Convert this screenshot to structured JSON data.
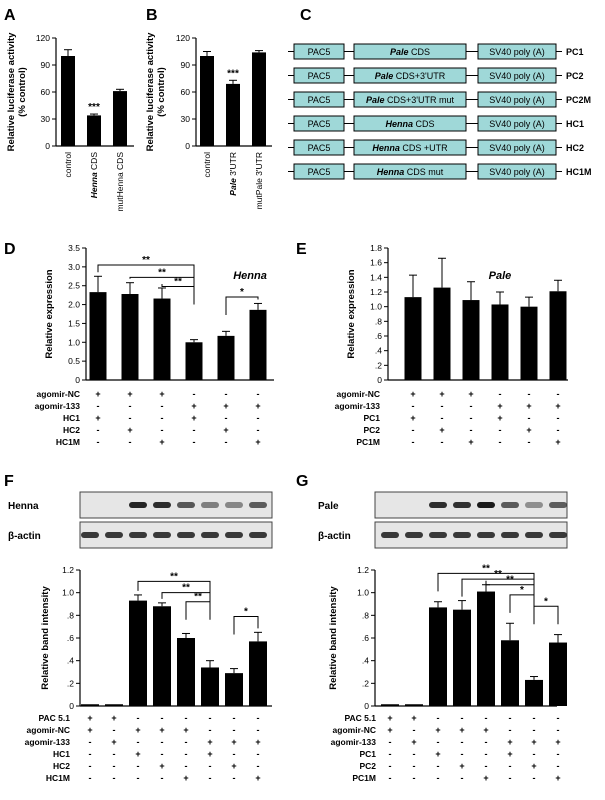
{
  "chart_data": [
    {
      "panel": "A",
      "type": "bar",
      "categories": [
        "control",
        "Henna CDS",
        "mutHenna CDS"
      ],
      "values": [
        100,
        34,
        61
      ],
      "errors": [
        7,
        1.5,
        2
      ],
      "ylabel": "Relative luciferase activity",
      "ylabel2": "(% control)",
      "ylim": [
        0,
        120
      ],
      "yticks": [
        "0",
        "30",
        "60",
        "90",
        "120"
      ],
      "sig": [
        {
          "bar": 1,
          "label": "***"
        }
      ],
      "bar_color": "#000000"
    },
    {
      "panel": "B",
      "type": "bar",
      "categories": [
        "control",
        "Pale 3'UTR",
        "mutPale 3'UTR"
      ],
      "values": [
        100,
        69,
        104
      ],
      "errors": [
        5,
        4,
        2
      ],
      "ylabel": "Relative luciferase activity",
      "ylabel2": "(% control)",
      "ylim": [
        0,
        120
      ],
      "yticks": [
        "0",
        "30",
        "60",
        "90",
        "120"
      ],
      "sig": [
        {
          "bar": 1,
          "label": "***"
        }
      ],
      "bar_color": "#000000"
    },
    {
      "panel": "D",
      "type": "bar",
      "title": "Henna",
      "values": [
        2.33,
        2.28,
        2.16,
        1.0,
        1.17,
        1.86
      ],
      "errors": [
        0.42,
        0.3,
        0.28,
        0.07,
        0.12,
        0.17
      ],
      "ylabel": "Relative expression",
      "ylim": [
        0,
        3.5
      ],
      "yticks": [
        "0",
        "0.5",
        "1.0",
        "1.5",
        "2.0",
        "2.5",
        "3.0",
        "3.5"
      ],
      "condition_rows": [
        {
          "label": "agomir-NC",
          "signs": [
            "+",
            "+",
            "+",
            "-",
            "-",
            "-"
          ]
        },
        {
          "label": "agomir-133",
          "signs": [
            "-",
            "-",
            "-",
            "+",
            "+",
            "+"
          ]
        },
        {
          "label": "HC1",
          "signs": [
            "+",
            "-",
            "-",
            "+",
            "-",
            "-"
          ]
        },
        {
          "label": "HC2",
          "signs": [
            "-",
            "+",
            "-",
            "-",
            "+",
            "-"
          ]
        },
        {
          "label": "HC1M",
          "signs": [
            "-",
            "-",
            "+",
            "-",
            "-",
            "+"
          ]
        }
      ],
      "brackets": [
        {
          "from": 0,
          "to": 3,
          "label": "**",
          "level": 3.05
        },
        {
          "from": 1,
          "to": 3,
          "label": "**",
          "level": 2.72
        },
        {
          "from": 2,
          "to": 3,
          "label": "**",
          "level": 2.48
        },
        {
          "from": 4,
          "to": 5,
          "label": "*",
          "level": 2.2
        }
      ]
    },
    {
      "panel": "E",
      "type": "bar",
      "title": "Pale",
      "values": [
        1.13,
        1.26,
        1.09,
        1.03,
        1.0,
        1.21
      ],
      "errors": [
        0.3,
        0.4,
        0.25,
        0.17,
        0.13,
        0.15
      ],
      "ylabel": "Relative expression",
      "ylim": [
        0,
        1.8
      ],
      "yticks": [
        "0",
        ".2",
        ".4",
        ".6",
        ".8",
        "1.0",
        "1.2",
        "1.4",
        "1.6",
        "1.8"
      ],
      "condition_rows": [
        {
          "label": "agomir-NC",
          "signs": [
            "+",
            "+",
            "+",
            "-",
            "-",
            "-"
          ]
        },
        {
          "label": "agomir-133",
          "signs": [
            "-",
            "-",
            "-",
            "+",
            "+",
            "+"
          ]
        },
        {
          "label": "PC1",
          "signs": [
            "+",
            "-",
            "-",
            "+",
            "-",
            "-"
          ]
        },
        {
          "label": "PC2",
          "signs": [
            "-",
            "+",
            "-",
            "-",
            "+",
            "-"
          ]
        },
        {
          "label": "PC1M",
          "signs": [
            "-",
            "-",
            "+",
            "-",
            "-",
            "+"
          ]
        }
      ],
      "brackets": []
    },
    {
      "panel": "F",
      "type": "bar",
      "values": [
        0,
        0,
        0.93,
        0.88,
        0.6,
        0.34,
        0.29,
        0.57
      ],
      "errors": [
        0,
        0,
        0.05,
        0.03,
        0.04,
        0.06,
        0.04,
        0.08
      ],
      "ylabel": "Relative band intensity",
      "ylim": [
        0,
        1.2
      ],
      "yticks": [
        "0",
        ".2",
        ".4",
        ".6",
        ".8",
        "1.0",
        "1.2"
      ],
      "condition_rows": [
        {
          "label": "PAC 5.1",
          "signs": [
            "+",
            "+",
            "-",
            "-",
            "-",
            "-",
            "-",
            "-"
          ]
        },
        {
          "label": "agomir-NC",
          "signs": [
            "+",
            "-",
            "+",
            "+",
            "+",
            "-",
            "-",
            "-"
          ]
        },
        {
          "label": "agomir-133",
          "signs": [
            "-",
            "+",
            "-",
            "-",
            "-",
            "+",
            "+",
            "+"
          ]
        },
        {
          "label": "HC1",
          "signs": [
            "-",
            "-",
            "+",
            "-",
            "-",
            "+",
            "-",
            "-"
          ]
        },
        {
          "label": "HC2",
          "signs": [
            "-",
            "-",
            "-",
            "+",
            "-",
            "-",
            "+",
            "-"
          ]
        },
        {
          "label": "HC1M",
          "signs": [
            "-",
            "-",
            "-",
            "-",
            "+",
            "-",
            "-",
            "+"
          ]
        }
      ],
      "brackets": [
        {
          "from": 2,
          "to": 5,
          "label": "**",
          "level": 1.1
        },
        {
          "from": 3,
          "to": 5,
          "label": "**",
          "level": 1.0
        },
        {
          "from": 4,
          "to": 5,
          "label": "**",
          "level": 0.92
        },
        {
          "from": 6,
          "to": 7,
          "label": "*",
          "level": 0.79
        }
      ]
    },
    {
      "panel": "G",
      "type": "bar",
      "values": [
        0,
        0,
        0.87,
        0.85,
        1.01,
        0.58,
        0.23,
        0.56
      ],
      "errors": [
        0,
        0,
        0.05,
        0.08,
        0.06,
        0.15,
        0.03,
        0.07
      ],
      "ylabel": "Relative band intensity",
      "ylim": [
        0,
        1.2
      ],
      "yticks": [
        "0",
        ".2",
        ".4",
        ".6",
        ".8",
        "1.0",
        "1.2"
      ],
      "condition_rows": [
        {
          "label": "PAC 5.1",
          "signs": [
            "+",
            "+",
            "-",
            "-",
            "-",
            "-",
            "-",
            "-"
          ]
        },
        {
          "label": "agomir-NC",
          "signs": [
            "+",
            "-",
            "+",
            "+",
            "+",
            "-",
            "-",
            "-"
          ]
        },
        {
          "label": "agomir-133",
          "signs": [
            "-",
            "+",
            "-",
            "-",
            "-",
            "+",
            "+",
            "+"
          ]
        },
        {
          "label": "PC1",
          "signs": [
            "-",
            "-",
            "+",
            "-",
            "-",
            "+",
            "-",
            "-"
          ]
        },
        {
          "label": "PC2",
          "signs": [
            "-",
            "-",
            "-",
            "+",
            "-",
            "-",
            "+",
            "-"
          ]
        },
        {
          "label": "PC1M",
          "signs": [
            "-",
            "-",
            "-",
            "-",
            "+",
            "-",
            "-",
            "+"
          ]
        }
      ],
      "brackets": [
        {
          "from": 2,
          "to": 6,
          "label": "**",
          "level": 1.17
        },
        {
          "from": 3,
          "to": 6,
          "label": "**",
          "level": 1.12
        },
        {
          "from": 4,
          "to": 6,
          "label": "**",
          "level": 1.07
        },
        {
          "from": 5,
          "to": 6,
          "label": "*",
          "level": 0.98
        },
        {
          "from": 6,
          "to": 7,
          "label": "*",
          "level": 0.88
        }
      ]
    }
  ],
  "panels": {
    "A": "A",
    "B": "B",
    "C": "C",
    "D": "D",
    "E": "E",
    "F": "F",
    "G": "G"
  },
  "constructs": [
    {
      "promoter": "PAC5",
      "insert": "Pale CDS",
      "tail": "SV40 poly (A)",
      "name": "PC1"
    },
    {
      "promoter": "PAC5",
      "insert": "Pale CDS+3'UTR",
      "tail": "SV40 poly (A)",
      "name": "PC2"
    },
    {
      "promoter": "PAC5",
      "insert": "Pale CDS+3'UTR mut",
      "tail": "SV40 poly (A)",
      "name": "PC2M"
    },
    {
      "promoter": "PAC5",
      "insert": "Henna CDS",
      "tail": "SV40 poly (A)",
      "name": "HC1"
    },
    {
      "promoter": "PAC5",
      "insert": "Henna CDS +UTR",
      "tail": "SV40 poly (A)",
      "name": "HC2"
    },
    {
      "promoter": "PAC5",
      "insert": "Henna CDS mut",
      "tail": "SV40 poly (A)",
      "name": "HC1M"
    }
  ],
  "blots": {
    "F": {
      "target": "Henna",
      "loading": "β-actin",
      "intensity": [
        0,
        0,
        0.93,
        0.88,
        0.6,
        0.34,
        0.29,
        0.57
      ]
    },
    "G": {
      "target": "Pale",
      "loading": "β-actin",
      "intensity": [
        0,
        0,
        0.87,
        0.85,
        1.01,
        0.58,
        0.23,
        0.56
      ]
    }
  },
  "colors": {
    "bar": "#000000",
    "construct_box": "#9fd8d8",
    "blot_bg": "#e6e6e6",
    "band": "#1a1a1a"
  }
}
